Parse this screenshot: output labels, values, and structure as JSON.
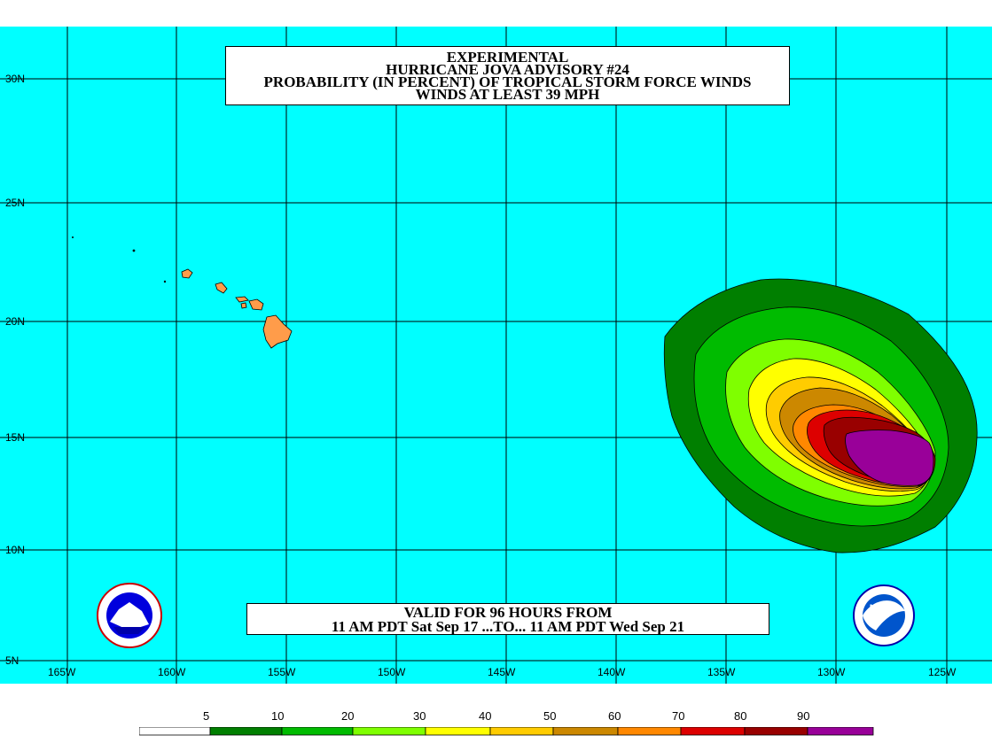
{
  "title": {
    "line1": "EXPERIMENTAL",
    "line2": "HURRICANE JOVA ADVISORY #24",
    "line3": "PROBABILITY (IN PERCENT) OF TROPICAL STORM FORCE WINDS",
    "line4": "WINDS AT LEAST 39 MPH"
  },
  "valid": {
    "line1": "VALID FOR 96 HOURS FROM",
    "line2": "11 AM PDT Sat Sep 17 ...TO... 11 AM PDT Wed Sep 21"
  },
  "lat_labels": [
    "30N",
    "25N",
    "20N",
    "15N",
    "10N",
    "5N"
  ],
  "lon_labels": [
    "165W",
    "160W",
    "155W",
    "150W",
    "145W",
    "140W",
    "135W",
    "130W",
    "125W"
  ],
  "legend": {
    "labels": [
      "5",
      "10",
      "20",
      "30",
      "40",
      "50",
      "60",
      "70",
      "80",
      "90"
    ],
    "colors": [
      "#ffffff",
      "#007f00",
      "#00bb00",
      "#7fff00",
      "#ffff00",
      "#ffcc00",
      "#cc8800",
      "#ff8800",
      "#dd0000",
      "#990000",
      "#990099"
    ]
  },
  "colors": {
    "ocean": "#00ffff",
    "land": "#ff9c4a",
    "grid": "#000000"
  },
  "logos": {
    "left": "nws-logo-icon",
    "right": "noaa-logo-icon"
  }
}
